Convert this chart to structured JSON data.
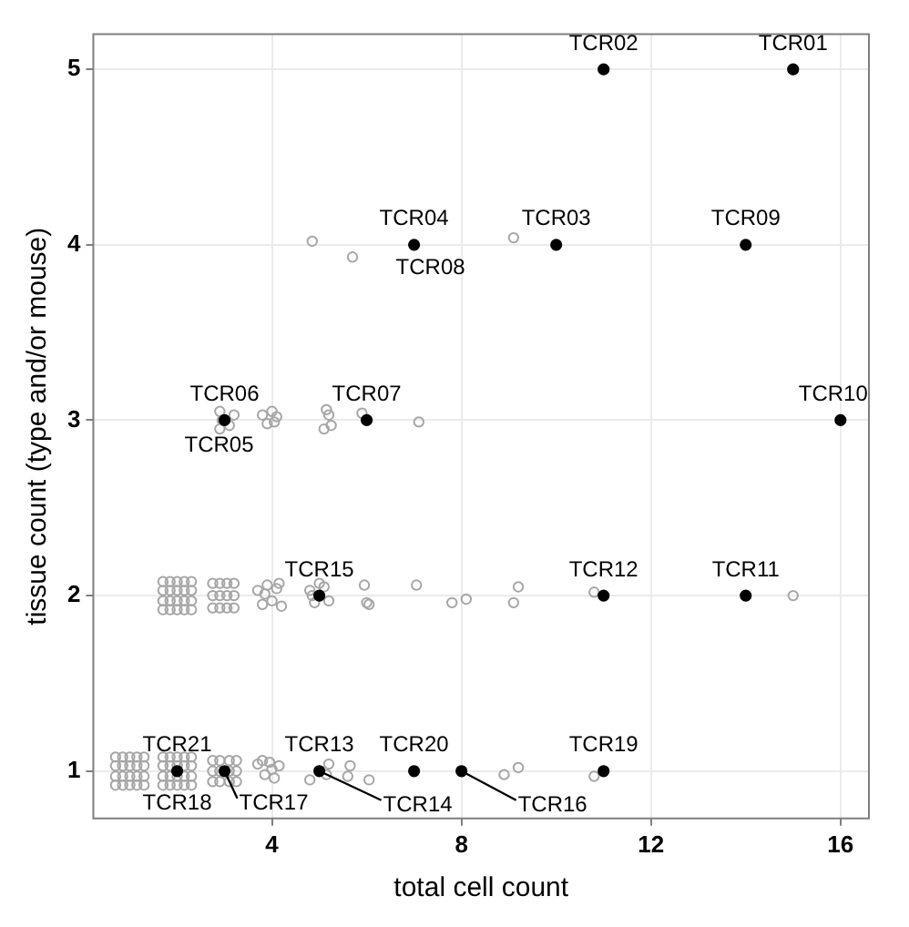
{
  "chart_data": {
    "type": "scatter",
    "xlabel": "total cell count",
    "ylabel": "tissue count (type and/or mouse)",
    "xlim": [
      0.23,
      16.6
    ],
    "ylim": [
      0.73,
      5.2
    ],
    "xticks": [
      4,
      8,
      12,
      16
    ],
    "yticks": [
      1,
      2,
      3,
      4,
      5
    ],
    "grid": true,
    "marker": "circle",
    "series": [
      {
        "color": "#a6a6a6",
        "x": [
          0.7,
          0.85,
          1.0,
          1.15,
          1.3,
          0.7,
          0.85,
          1.0,
          1.15,
          1.3,
          0.7,
          0.85,
          1.0,
          1.15,
          1.3,
          0.7,
          0.85,
          1.0,
          1.15,
          1.3,
          1.7,
          1.85,
          2.0,
          2.15,
          2.3,
          1.7,
          1.85,
          2.0,
          2.15,
          2.3,
          1.7,
          1.85,
          2.0,
          2.15,
          2.3,
          1.7,
          1.85,
          2.0,
          2.15,
          2.3,
          1.7,
          1.85,
          2.0,
          2.15,
          2.3,
          1.7,
          1.85,
          2.0,
          2.15,
          2.3,
          1.7,
          1.85,
          2.0,
          2.15,
          2.3,
          1.7,
          1.85,
          2.0,
          2.15,
          2.3,
          2.75,
          2.9,
          3.05,
          3.2,
          2.75,
          2.9,
          3.05,
          3.2,
          2.75,
          2.9,
          3.05,
          3.2,
          2.75,
          2.9,
          3.1,
          3.25,
          2.75,
          2.9,
          3.1,
          3.25,
          2.75,
          2.9,
          3.1,
          3.25,
          3.7,
          3.8,
          3.9,
          4.0,
          4.1,
          4.2,
          3.85,
          4.15,
          3.7,
          3.85,
          3.95,
          4.05,
          4.15,
          4.0,
          3.8,
          4.8,
          4.9,
          5.1,
          5.2,
          5.0,
          4.85,
          4.8,
          5.2,
          5.15,
          5.6,
          5.65,
          6.05,
          8.9,
          9.2,
          10.8,
          5.95,
          6.0,
          6.05,
          7.05,
          7.8,
          8.1,
          9.1,
          9.2,
          10.8,
          15.0,
          2.9,
          2.9,
          3.1,
          3.2,
          2.95,
          3.8,
          3.9,
          4.0,
          4.05,
          4.1,
          5.1,
          5.2,
          5.25,
          5.15,
          5.9,
          7.1,
          4.85,
          5.7,
          9.1
        ],
        "values": [
          0.92,
          0.92,
          0.92,
          0.92,
          0.92,
          0.97,
          0.97,
          0.97,
          0.97,
          0.97,
          1.03,
          1.03,
          1.03,
          1.03,
          1.03,
          1.08,
          1.08,
          1.08,
          1.08,
          1.08,
          0.92,
          0.92,
          0.92,
          0.92,
          0.92,
          0.97,
          0.97,
          0.97,
          0.97,
          0.97,
          1.03,
          1.03,
          1.03,
          1.03,
          1.03,
          1.08,
          1.08,
          1.08,
          1.08,
          1.08,
          1.92,
          1.92,
          1.92,
          1.92,
          1.92,
          1.97,
          1.97,
          1.97,
          1.97,
          1.97,
          2.03,
          2.03,
          2.03,
          2.03,
          2.03,
          2.08,
          2.08,
          2.08,
          2.08,
          2.08,
          1.93,
          1.93,
          1.93,
          1.93,
          2.0,
          2.0,
          2.0,
          2.0,
          2.07,
          2.07,
          2.07,
          2.07,
          0.94,
          0.94,
          0.94,
          0.94,
          1.0,
          1.0,
          1.0,
          1.0,
          1.06,
          1.06,
          1.06,
          1.06,
          2.03,
          1.95,
          2.06,
          1.97,
          2.04,
          1.94,
          2.01,
          2.07,
          1.04,
          0.98,
          1.05,
          0.96,
          1.03,
          1.01,
          1.06,
          2.03,
          1.96,
          2.05,
          1.97,
          2.07,
          2.0,
          0.95,
          1.04,
          0.98,
          0.97,
          1.03,
          0.95,
          0.98,
          1.02,
          0.97,
          2.06,
          1.96,
          1.95,
          2.06,
          1.96,
          1.98,
          1.96,
          2.05,
          2.02,
          2.0,
          3.05,
          2.95,
          2.97,
          3.03,
          3.0,
          3.03,
          2.98,
          3.05,
          2.99,
          3.02,
          2.95,
          3.03,
          2.97,
          3.06,
          3.04,
          2.99,
          4.02,
          3.93,
          4.04
        ]
      },
      {
        "color": "#000000",
        "x": [
          15,
          11,
          10,
          7,
          14,
          3,
          6,
          16,
          5,
          11,
          14,
          2,
          3,
          5,
          7,
          8,
          11
        ],
        "values": [
          5,
          5,
          4,
          4,
          4,
          3,
          3,
          3,
          2,
          2,
          2,
          1,
          1,
          1,
          1,
          1,
          1
        ]
      }
    ],
    "annotations": [
      {
        "text": "TCR01",
        "x": 15,
        "y": 5
      },
      {
        "text": "TCR02",
        "x": 11,
        "y": 5
      },
      {
        "text": "TCR03",
        "x": 10,
        "y": 4
      },
      {
        "text": "TCR04",
        "x": 7,
        "y": 4
      },
      {
        "text": "TCR05",
        "x": 3,
        "y": 3
      },
      {
        "text": "TCR06",
        "x": 3,
        "y": 3
      },
      {
        "text": "TCR07",
        "x": 6,
        "y": 3
      },
      {
        "text": "TCR08",
        "x": 7,
        "y": 4
      },
      {
        "text": "TCR09",
        "x": 14,
        "y": 4
      },
      {
        "text": "TCR10",
        "x": 16,
        "y": 3
      },
      {
        "text": "TCR11",
        "x": 14,
        "y": 2
      },
      {
        "text": "TCR12",
        "x": 11,
        "y": 2
      },
      {
        "text": "TCR13",
        "x": 5,
        "y": 1
      },
      {
        "text": "TCR14",
        "x": 5,
        "y": 1
      },
      {
        "text": "TCR15",
        "x": 5,
        "y": 2
      },
      {
        "text": "TCR16",
        "x": 8,
        "y": 1
      },
      {
        "text": "TCR17",
        "x": 3,
        "y": 1
      },
      {
        "text": "TCR18",
        "x": 2,
        "y": 1
      },
      {
        "text": "TCR19",
        "x": 11,
        "y": 1
      },
      {
        "text": "TCR20",
        "x": 7,
        "y": 1
      },
      {
        "text": "TCR21",
        "x": 2,
        "y": 1
      }
    ]
  }
}
